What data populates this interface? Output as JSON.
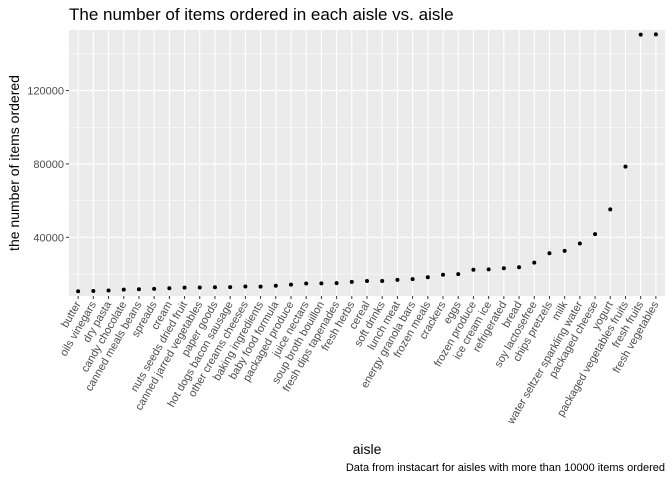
{
  "chart_data": {
    "type": "scatter",
    "title": "The number of items ordered in each aisle vs. aisle",
    "xlabel": "aisle",
    "ylabel": "the number of items ordered",
    "caption": "Data from instacart for aisles with more than 10000 items ordered",
    "ylim": [
      8000,
      153000
    ],
    "yticks": [
      40000,
      80000,
      120000
    ],
    "ytick_labels": [
      "40000",
      "80000",
      "120000"
    ],
    "grid": true,
    "legend": "none",
    "categories": [
      "butter",
      "oils vinegars",
      "dry pasta",
      "candy chocolate",
      "canned meals beans",
      "spreads",
      "cream",
      "nuts seeds dried fruit",
      "canned jarred vegetables",
      "paper goods",
      "hot dogs bacon sausage",
      "other creams cheeses",
      "baking ingredients",
      "baby food formula",
      "packaged produce",
      "juice nectars",
      "soup broth bouillon",
      "fresh dips tapenades",
      "fresh herbs",
      "cereal",
      "soft drinks",
      "lunch meat",
      "energy granola bars",
      "frozen meals",
      "crackers",
      "eggs",
      "frozen produce",
      "ice cream ice",
      "refrigerated",
      "bread",
      "soy lactosefree",
      "chips pretzels",
      "milk",
      "water seltzer sparkling water",
      "packaged cheese",
      "yogurt",
      "packaged vegetables fruits",
      "fresh fruits",
      "fresh vegetables"
    ],
    "values": [
      10575,
      10700,
      11000,
      11450,
      11700,
      11900,
      12250,
      12550,
      12650,
      12800,
      12850,
      13200,
      13100,
      13600,
      14200,
      14800,
      14900,
      15000,
      15700,
      16200,
      16200,
      16800,
      17200,
      18200,
      19600,
      19900,
      22300,
      22500,
      23100,
      23700,
      26200,
      31300,
      32600,
      36600,
      41700,
      55200,
      78500,
      150500,
      150600
    ],
    "point_color": "#000000",
    "panel_color": "#ebebeb",
    "grid_color": "#ffffff"
  }
}
